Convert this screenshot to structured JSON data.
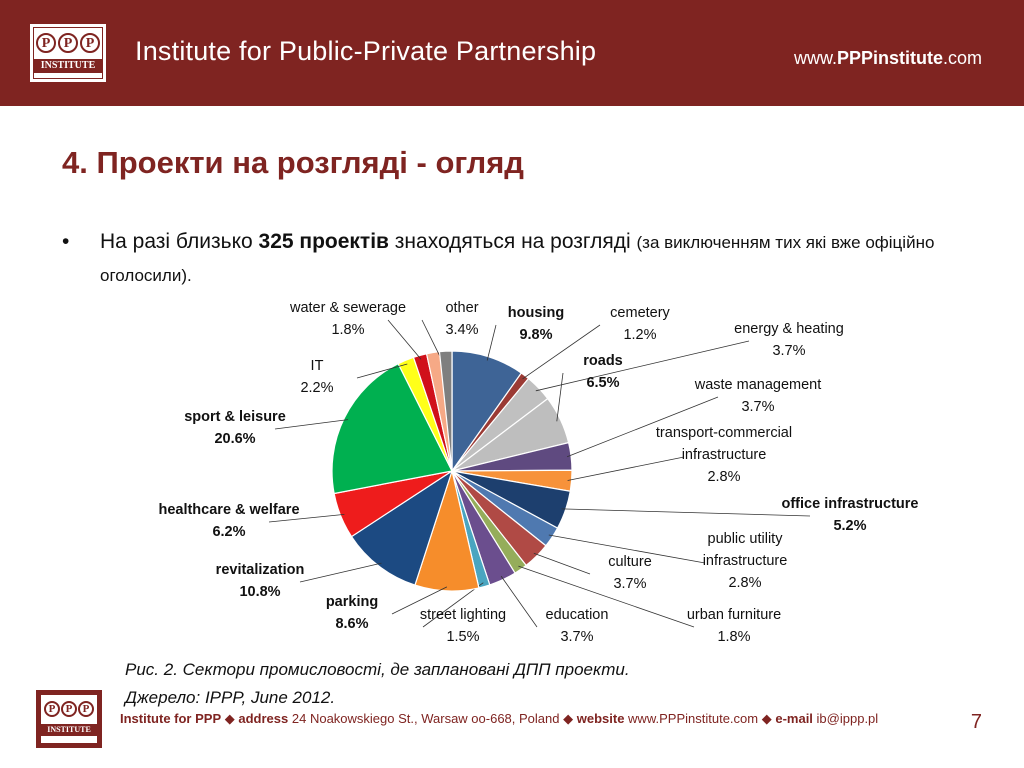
{
  "header": {
    "logo_letters": [
      "P",
      "P",
      "P"
    ],
    "logo_word": "INSTITUTE",
    "title": "Institute for Public-Private Partnership",
    "site_prefix": "www.",
    "site_bold": "PPPinstitute",
    "site_suffix": ".com"
  },
  "slide": {
    "title": "4. Проекти на розгляді - огляд",
    "bullet_symbol": "•",
    "bullet_part1": "На разі близько ",
    "bullet_bold": "325 проектів",
    "bullet_part2": " знаходяться на розгляді ",
    "bullet_small": "(за виключенням тих які вже офіційно оголосили)."
  },
  "caption": {
    "line1": "Рис. 2. Сектори промисловості, де заплановані ДПП проекти.",
    "line2": "Джерело: IPPP, June 2012."
  },
  "footer": {
    "org": "Institute for PPP",
    "sep": "◆",
    "address_label": "address",
    "address": "24 Noakowskiego St., Warsaw oo-668, Poland",
    "website_label": "website",
    "website": "www.PPPinstitute.com",
    "email_label": "e-mail",
    "email": "ib@ippp.pl",
    "page": "7"
  },
  "colors": {
    "brand": "#7f2421",
    "background": "#ffffff"
  },
  "chart_data": {
    "type": "pie",
    "unit": "%",
    "slices": [
      {
        "label": "housing",
        "value": 9.8,
        "color": "#3e6496",
        "bold": true
      },
      {
        "label": "cemetery",
        "value": 1.2,
        "color": "#9b3a34",
        "bold": false
      },
      {
        "label": "energy & heating",
        "value": 3.7,
        "color": "#c0c0c0",
        "bold": false
      },
      {
        "label": "roads",
        "value": 6.5,
        "color": "#bebebe",
        "bold": true
      },
      {
        "label": "waste management",
        "value": 3.7,
        "color": "#5f4a80",
        "bold": false
      },
      {
        "label": "transport-commercial infrastructure",
        "value": 2.8,
        "color": "#f7923a",
        "bold": false
      },
      {
        "label": "office infrastructure",
        "value": 5.2,
        "color": "#1d3f6e",
        "bold": true
      },
      {
        "label": "public utility infrastructure",
        "value": 2.8,
        "color": "#4f79b0",
        "bold": false
      },
      {
        "label": "culture",
        "value": 3.7,
        "color": "#b04a45",
        "bold": false
      },
      {
        "label": "urban furniture",
        "value": 1.8,
        "color": "#95ad5b",
        "bold": false
      },
      {
        "label": "education",
        "value": 3.7,
        "color": "#6b4e8e",
        "bold": false
      },
      {
        "label": "street lighting",
        "value": 1.5,
        "color": "#4aa5c0",
        "bold": false
      },
      {
        "label": "parking",
        "value": 8.6,
        "color": "#f68d2b",
        "bold": true
      },
      {
        "label": "revitalization",
        "value": 10.8,
        "color": "#1c4a82",
        "bold": true
      },
      {
        "label": "healthcare & welfare",
        "value": 6.2,
        "color": "#ee1c1c",
        "bold": true
      },
      {
        "label": "sport & leisure",
        "value": 20.6,
        "color": "#00b050",
        "bold": true
      },
      {
        "label": "IT",
        "value": 2.2,
        "color": "#ffff1a",
        "bold": false
      },
      {
        "label": "water & sewerage",
        "value": 1.8,
        "color": "#d0101a",
        "bold": false
      },
      {
        "label": "other",
        "value": 3.4,
        "color": "#f6a986",
        "bold": false
      }
    ],
    "extra_slice_color": "#7f7f7f"
  }
}
